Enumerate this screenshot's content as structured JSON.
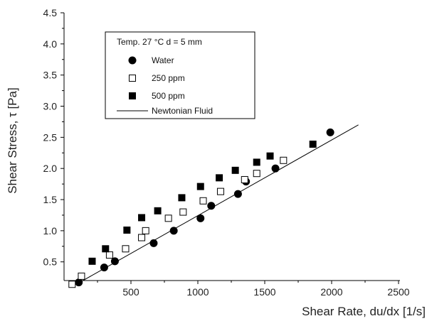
{
  "chart_data": {
    "type": "scatter",
    "title": "",
    "xlabel": "Shear Rate, du/dx  [1/s]",
    "ylabel": "Shear Stress, τ [Pa]",
    "xlim": [
      0,
      2500
    ],
    "ylim": [
      0.2,
      4.5
    ],
    "xticks": [
      "500",
      "1000",
      "1500",
      "2000",
      "2500"
    ],
    "yticks": [
      "0.5",
      "1.0",
      "1.5",
      "2.0",
      "2.5",
      "3.0",
      "3.5",
      "4.0",
      "4.5"
    ],
    "legend_header": "Temp. 27 °C   d = 5 mm",
    "legend_position": "top-left",
    "grid": false,
    "series": [
      {
        "name": "Water",
        "marker": "filled-circle",
        "color": "#000000",
        "points": [
          [
            110,
            0.17
          ],
          [
            300,
            0.41
          ],
          [
            380,
            0.51
          ],
          [
            670,
            0.8
          ],
          [
            820,
            1.0
          ],
          [
            1020,
            1.2
          ],
          [
            1100,
            1.4
          ],
          [
            1300,
            1.59
          ],
          [
            1360,
            1.79
          ],
          [
            1580,
            2.0
          ],
          [
            1990,
            2.58
          ]
        ]
      },
      {
        "name": "250 ppm",
        "marker": "open-square",
        "color": "#000000",
        "points": [
          [
            60,
            0.14
          ],
          [
            130,
            0.27
          ],
          [
            340,
            0.61
          ],
          [
            460,
            0.71
          ],
          [
            580,
            0.89
          ],
          [
            610,
            1.0
          ],
          [
            780,
            1.2
          ],
          [
            890,
            1.3
          ],
          [
            1040,
            1.48
          ],
          [
            1170,
            1.63
          ],
          [
            1350,
            1.82
          ],
          [
            1440,
            1.92
          ],
          [
            1640,
            2.13
          ]
        ]
      },
      {
        "name": "500 ppm",
        "marker": "filled-square",
        "color": "#000000",
        "points": [
          [
            210,
            0.51
          ],
          [
            310,
            0.71
          ],
          [
            470,
            1.01
          ],
          [
            580,
            1.21
          ],
          [
            700,
            1.32
          ],
          [
            880,
            1.53
          ],
          [
            1020,
            1.71
          ],
          [
            1160,
            1.85
          ],
          [
            1280,
            1.97
          ],
          [
            1440,
            2.1
          ],
          [
            1540,
            2.2
          ],
          [
            1860,
            2.39
          ]
        ]
      },
      {
        "name": "Newtonian Fluid",
        "type": "line",
        "color": "#000000",
        "points": [
          [
            100,
            0.15
          ],
          [
            2200,
            2.7
          ]
        ]
      }
    ]
  }
}
